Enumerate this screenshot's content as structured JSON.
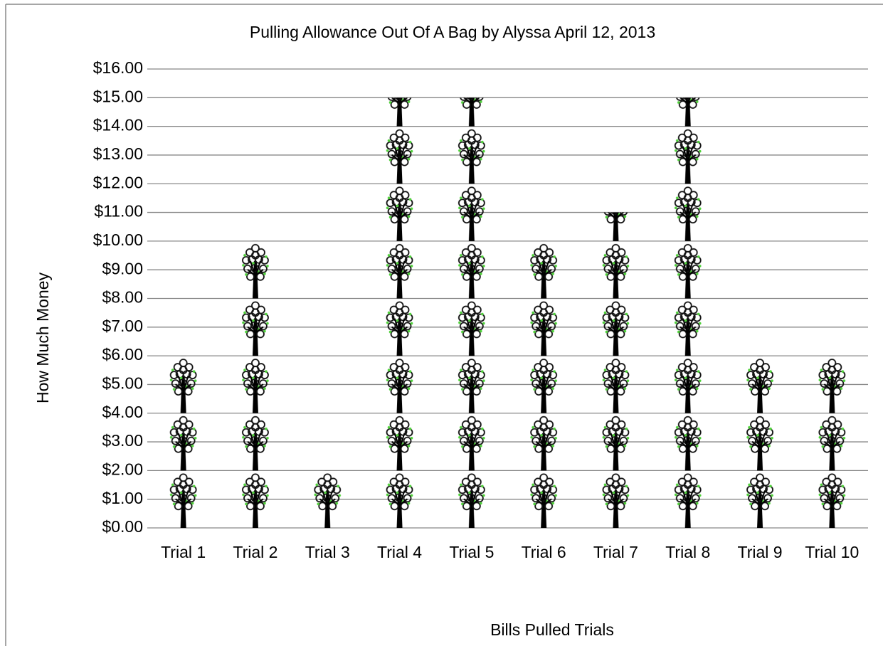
{
  "chart_data": {
    "type": "pictograph",
    "title": "Pulling Allowance Out Of A Bag by Alyssa April 12, 2013",
    "x_label": "Bills Pulled Trials",
    "y_label": "How Much Money",
    "categories": [
      "Trial 1",
      "Trial 2",
      "Trial 3",
      "Trial 4",
      "Trial 5",
      "Trial 6",
      "Trial 7",
      "Trial 8",
      "Trial 9",
      "Trial 10"
    ],
    "values": [
      6,
      10,
      2,
      15,
      15,
      10,
      11,
      15,
      6,
      6
    ],
    "ylim": [
      0,
      16
    ],
    "yticks": [
      {
        "value": 0,
        "label": "$0.00"
      },
      {
        "value": 1,
        "label": "$1.00"
      },
      {
        "value": 2,
        "label": "$2.00"
      },
      {
        "value": 3,
        "label": "$3.00"
      },
      {
        "value": 4,
        "label": "$4.00"
      },
      {
        "value": 5,
        "label": "$5.00"
      },
      {
        "value": 6,
        "label": "$6.00"
      },
      {
        "value": 7,
        "label": "$7.00"
      },
      {
        "value": 8,
        "label": "$8.00"
      },
      {
        "value": 9,
        "label": "$9.00"
      },
      {
        "value": 10,
        "label": "$10.00"
      },
      {
        "value": 11,
        "label": "$11.00"
      },
      {
        "value": 12,
        "label": "$12.00"
      },
      {
        "value": 13,
        "label": "$13.00"
      },
      {
        "value": 14,
        "label": "$14.00"
      },
      {
        "value": 15,
        "label": "$15.00"
      },
      {
        "value": 16,
        "label": "$16.00"
      }
    ],
    "grid": true
  }
}
